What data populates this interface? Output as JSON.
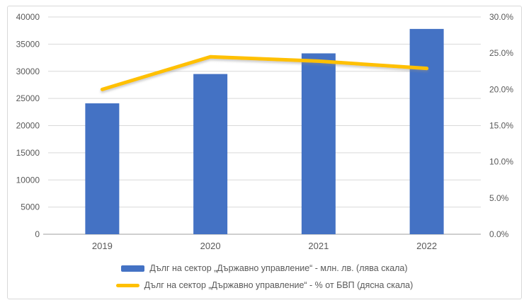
{
  "chart_data": {
    "type": "bar",
    "subtype": "bar-and-line-combo",
    "title": "",
    "categories": [
      "2019",
      "2020",
      "2021",
      "2022"
    ],
    "series": [
      {
        "name": "Дълг на сектор „Държавно управление“ - млн. лв. (лява скала)",
        "type": "bar",
        "axis": "left",
        "color": "#4472C4",
        "values": [
          24100,
          29500,
          33300,
          37800
        ]
      },
      {
        "name": "Дълг на сектор „Държавно управление“ - % от БВП (дясна скала)",
        "type": "line",
        "axis": "right",
        "color": "#FFC000",
        "values": [
          20.0,
          24.5,
          23.9,
          22.9
        ]
      }
    ],
    "left_axis": {
      "min": 0,
      "max": 40000,
      "step": 5000,
      "tick_values": [
        0,
        5000,
        10000,
        15000,
        20000,
        25000,
        30000,
        35000,
        40000
      ],
      "tick_labels": [
        "0",
        "5000",
        "10000",
        "15000",
        "20000",
        "25000",
        "30000",
        "35000",
        "40000"
      ]
    },
    "right_axis": {
      "min": 0,
      "max": 30,
      "step": 5,
      "tick_values": [
        0,
        5,
        10,
        15,
        20,
        25,
        30
      ],
      "tick_labels": [
        "0.0%",
        "5.0%",
        "10.0%",
        "15.0%",
        "20.0%",
        "25.0%",
        "30.0%"
      ]
    },
    "grid": true,
    "legend_position": "bottom",
    "colors": {
      "bar": "#4472C4",
      "line": "#FFC000",
      "gridline": "#D9D9D9",
      "zero_axis": "#BFBFBF",
      "tick_text": "#595959",
      "frame_border": "#D9D9D9",
      "background": "#FFFFFF"
    }
  }
}
